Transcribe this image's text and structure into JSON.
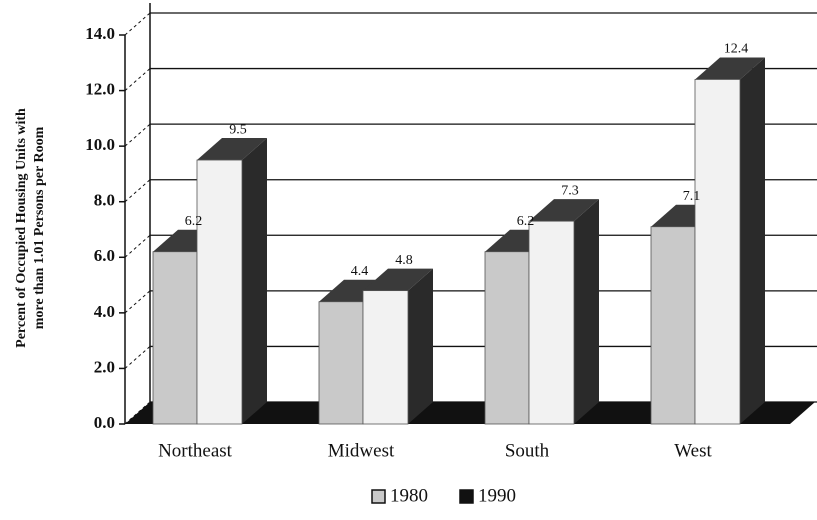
{
  "chart_data": {
    "type": "bar",
    "y_label": [
      "Percent of Occupied Housing Units with",
      "more than 1.01 Persons per Room"
    ],
    "categories": [
      "Northeast",
      "Midwest",
      "South",
      "West"
    ],
    "series": [
      {
        "name": "1980",
        "color": "#c9c9c9",
        "values": [
          6.2,
          4.4,
          6.2,
          7.1
        ]
      },
      {
        "name": "1990",
        "color": "#f2f2f2",
        "values": [
          9.5,
          4.8,
          7.3,
          12.4
        ]
      }
    ],
    "ylim": [
      0,
      14
    ],
    "yticks": [
      {
        "value": 0,
        "label": "0.0"
      },
      {
        "value": 2,
        "label": "2.0"
      },
      {
        "value": 4,
        "label": "4.0"
      },
      {
        "value": 6,
        "label": "6.0"
      },
      {
        "value": 8,
        "label": "8.0"
      },
      {
        "value": 10,
        "label": "10.0"
      },
      {
        "value": 12,
        "label": "12.0"
      },
      {
        "value": 14,
        "label": "14.0"
      }
    ],
    "grid": true
  }
}
